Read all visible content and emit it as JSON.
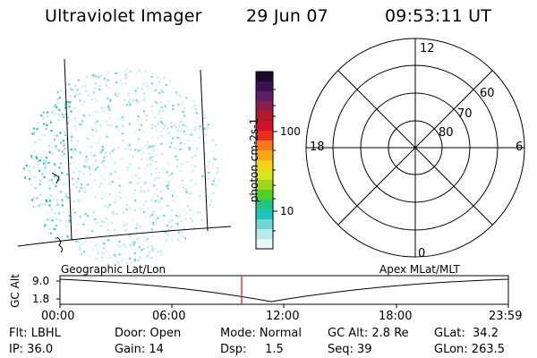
{
  "header": {
    "instrument": "Ultraviolet Imager",
    "date": "29 Jun 07",
    "time": "09:53:11 UT"
  },
  "colorbar": {
    "unit_label": "photon cm-2s-1",
    "ticks": [
      "100",
      "10"
    ],
    "colors": [
      "#1b0a2d",
      "#3d0f55",
      "#5d1e6b",
      "#8a1f4a",
      "#b21a2a",
      "#d0102a",
      "#ea2d1e",
      "#f5781a",
      "#f5a619",
      "#f5d21a",
      "#d6e51b",
      "#9ed61d",
      "#4fcf24",
      "#23c77c",
      "#1ec3bf",
      "#6fd6d6",
      "#b8e9e9",
      "#e6f6f6"
    ]
  },
  "polar_plot": {
    "labels": {
      "top": "12",
      "left": "18",
      "right": "6",
      "bottom": "0"
    },
    "lat_labels": [
      "60",
      "70",
      "80"
    ]
  },
  "lower_panel": {
    "left_caption": "Geographic Lat/Lon",
    "right_caption": "Apex MLat/MLT",
    "axis_label": "GC Alt",
    "y_ticks": [
      "9.0",
      "1.8"
    ],
    "x_ticks": [
      "00:00",
      "06:00",
      "12:00",
      "18:00",
      "23:59"
    ],
    "current_marker_color": "#ff0000"
  },
  "status": {
    "flt": "Flt: LBHL",
    "ip": "IP: 36.0",
    "door": "Door: Open",
    "gain": "Gain: 14",
    "mode": "Mode: Normal",
    "dsp": "Dsp:     1.5",
    "gcalt": "GC Alt: 2.8 Re",
    "seq": "Seq: 39",
    "glat": "GLat:  34.2",
    "glon": "GLon: 263.5"
  }
}
